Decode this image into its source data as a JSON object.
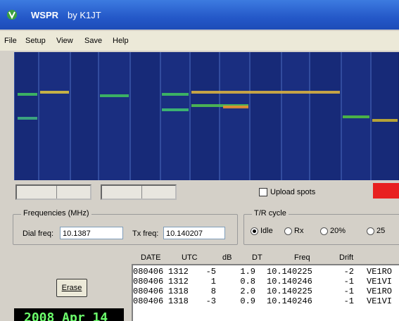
{
  "window": {
    "title": "WSPR",
    "author": "by K1JT"
  },
  "menu": [
    "File",
    "Setup",
    "View",
    "Save",
    "Help"
  ],
  "upload_spots": "Upload spots",
  "frequencies": {
    "label": "Frequencies (MHz)",
    "dial_label": "Dial freq:",
    "dial_value": "10.1387",
    "tx_label": "Tx freq:",
    "tx_value": "10.140207"
  },
  "tr_cycle": {
    "label": "T/R cycle",
    "options": [
      "Idle",
      "Rx",
      "20%",
      "25"
    ]
  },
  "erase": "Erase",
  "table": {
    "header": [
      "DATE",
      "UTC",
      "dB",
      "DT",
      "Freq",
      "Drift"
    ],
    "rows": [
      [
        "080406",
        "1312",
        "-5",
        "1.9",
        "10.140225",
        "-2",
        "VE1RO"
      ],
      [
        "080406",
        "1312",
        "1",
        "0.8",
        "10.140246",
        "-1",
        "VE1VI"
      ],
      [
        "080406",
        "1318",
        "8",
        "2.0",
        "10.140225",
        "-1",
        "VE1RO"
      ],
      [
        "080406",
        "1318",
        "-3",
        "0.9",
        "10.140246",
        "-1",
        "VE1VI"
      ]
    ]
  },
  "clock": "2008 Apr 14"
}
